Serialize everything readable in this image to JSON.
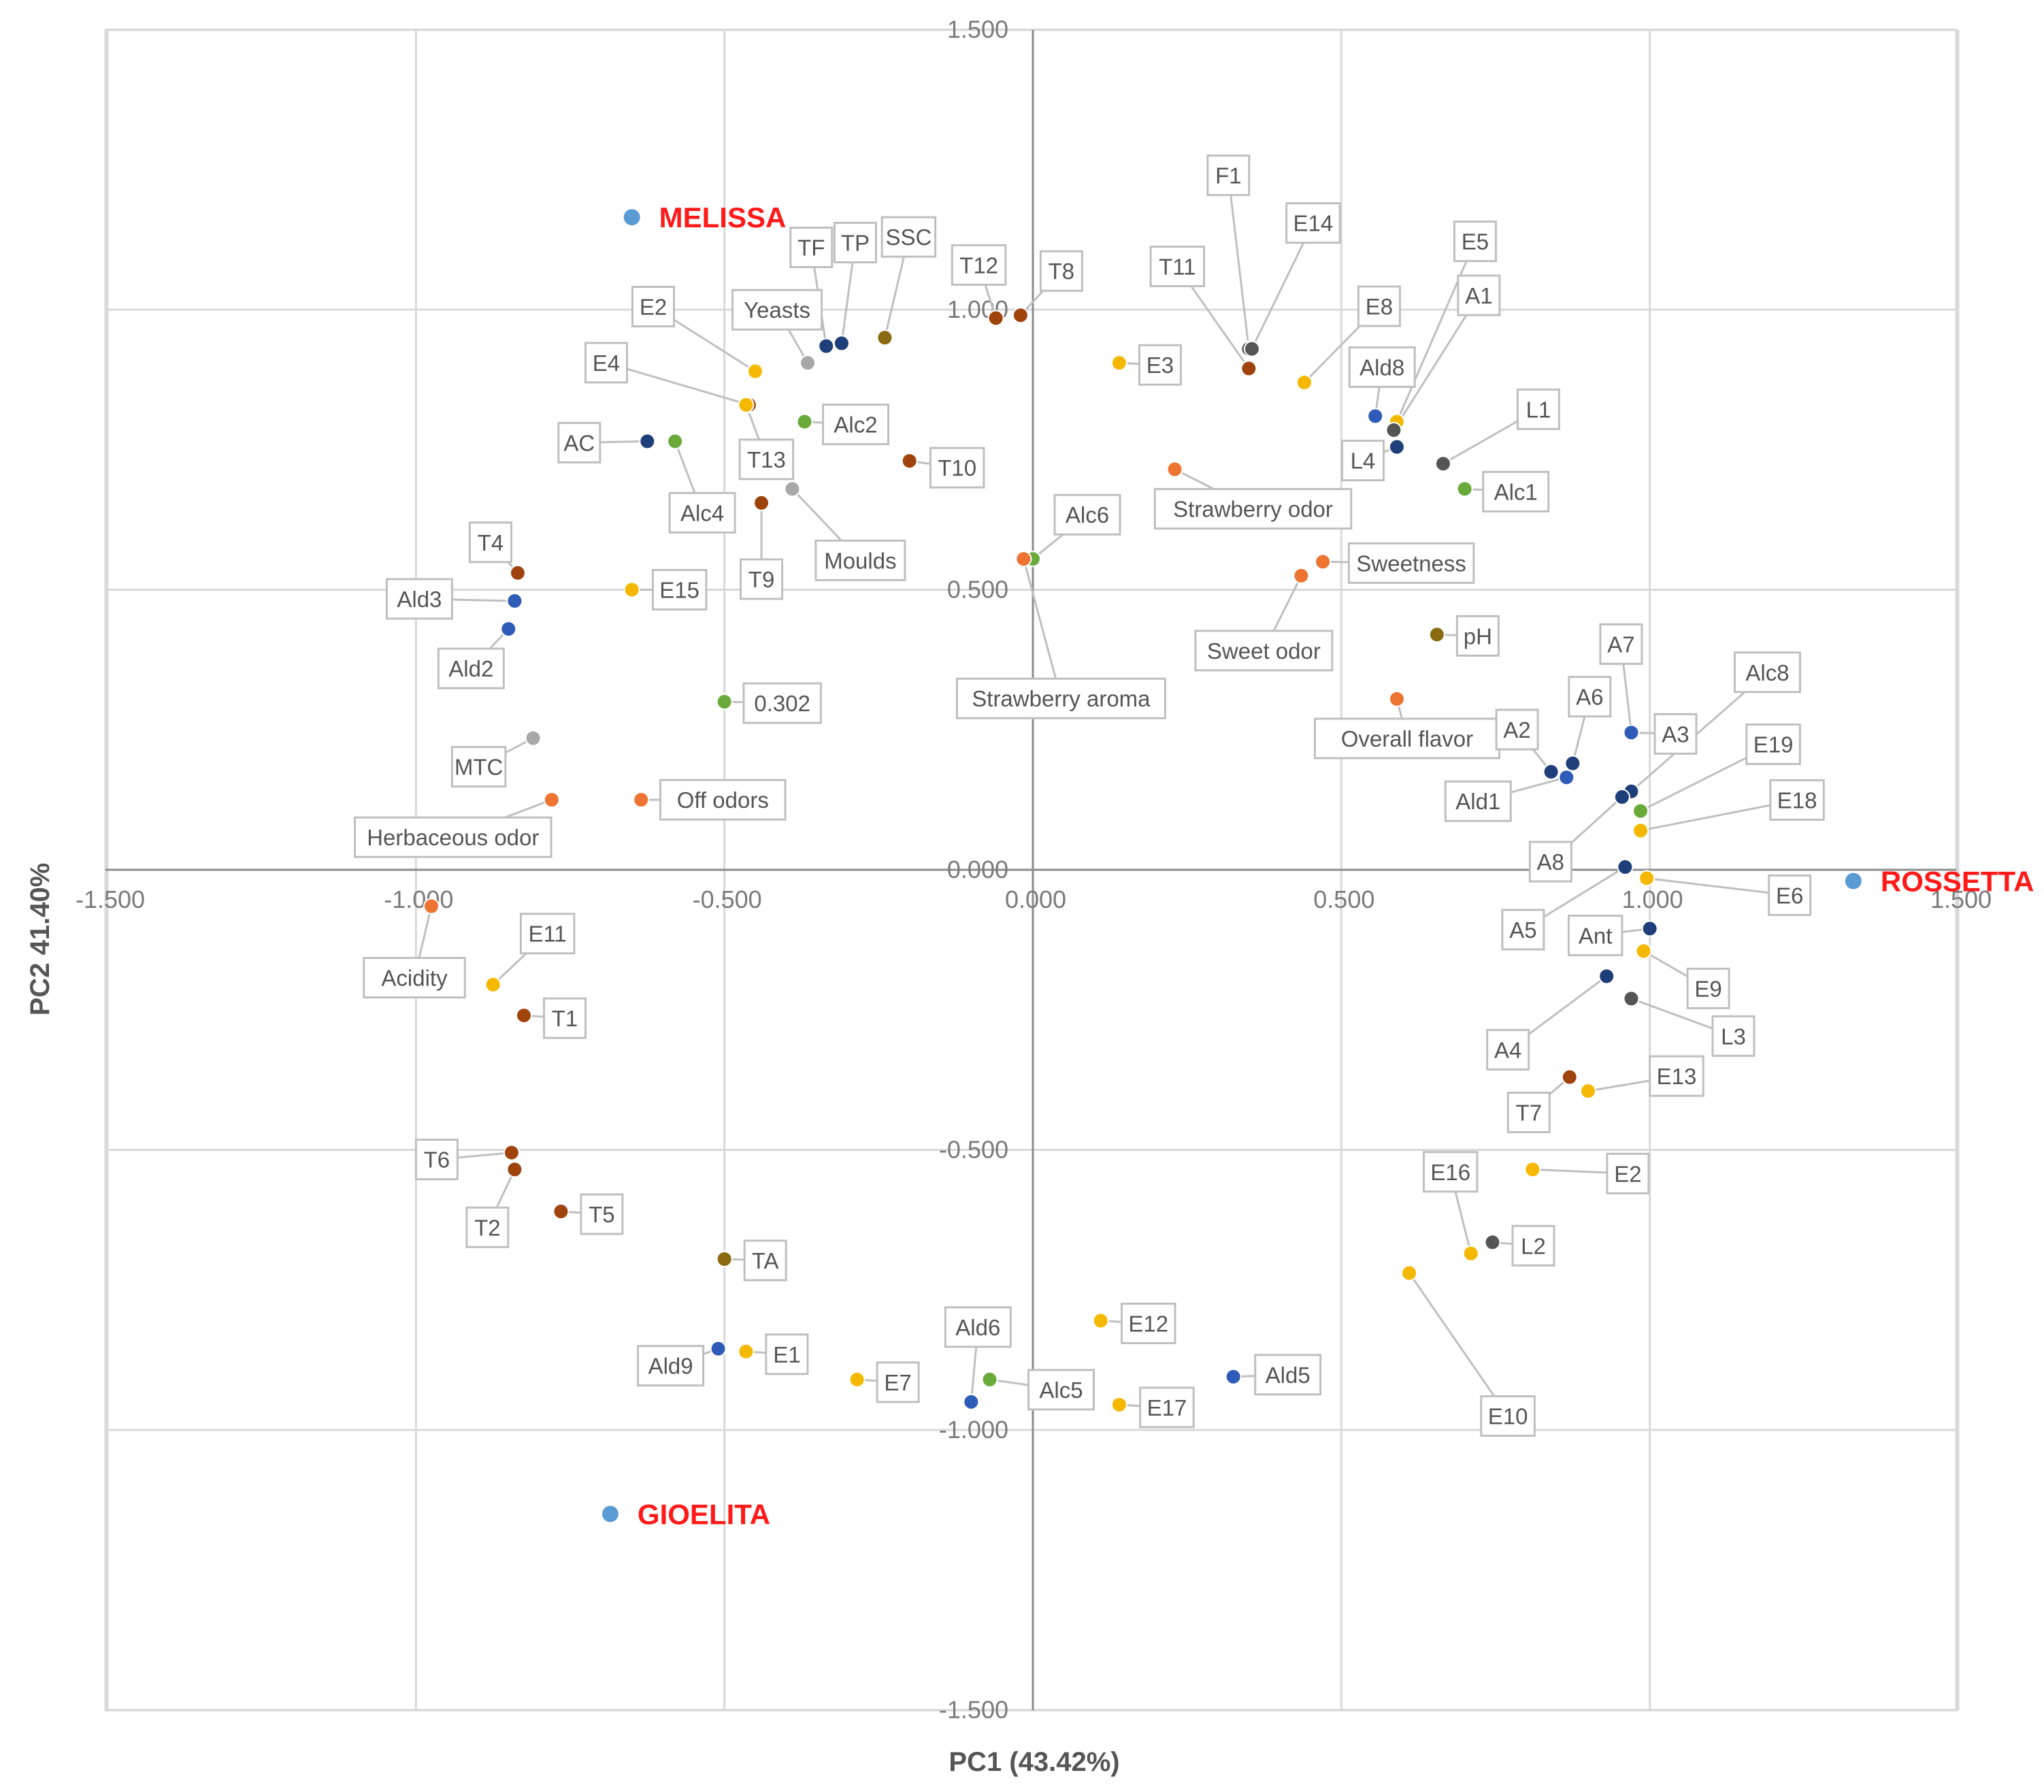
{
  "chart_data": {
    "type": "scatter",
    "xlabel": "PC1 (43.42%)",
    "ylabel": "PC2 41.40%",
    "xlim": [
      -1.5,
      1.5
    ],
    "ylim": [
      -1.5,
      1.5
    ],
    "xticks": [
      "-1.500",
      "-1.000",
      "-0.500",
      "0.000",
      "0.500",
      "1.000",
      "1.500"
    ],
    "yticks": [
      "-1.500",
      "-1.000",
      "-0.500",
      "0.000",
      "0.500",
      "1.000",
      "1.500"
    ],
    "grid": true,
    "colors": {
      "yellow": "#f5b800",
      "brown": "#a0440e",
      "blue": "#2e5cb8",
      "navy": "#1f3f7a",
      "green": "#6aaa3a",
      "gray": "#a8a8a8",
      "dkgray": "#555555",
      "olive": "#8a6a10",
      "orange": "#ed7432",
      "sample": "#5b9bd5",
      "sampleText": "#ff1a1a"
    },
    "samples": [
      {
        "name": "MELISSA",
        "x": -0.65,
        "y": 1.165
      },
      {
        "name": "ROSSETTA",
        "x": 1.33,
        "y": -0.02
      },
      {
        "name": "GIOELITA",
        "x": -0.685,
        "y": -1.15
      }
    ],
    "points": [
      {
        "label": "E2",
        "x": -0.45,
        "y": 0.89,
        "color": "yellow"
      },
      {
        "label": "E4",
        "x": -0.46,
        "y": 0.83,
        "color": "brown"
      },
      {
        "label": "Yeasts",
        "x": -0.365,
        "y": 0.905,
        "color": "gray"
      },
      {
        "label": "TF",
        "x": -0.335,
        "y": 0.935,
        "color": "navy"
      },
      {
        "label": "TP",
        "x": -0.31,
        "y": 0.94,
        "color": "navy"
      },
      {
        "label": "SSC",
        "x": -0.24,
        "y": 0.95,
        "color": "olive"
      },
      {
        "label": "T12",
        "x": -0.06,
        "y": 0.985,
        "color": "brown"
      },
      {
        "label": "T8",
        "x": -0.02,
        "y": 0.99,
        "color": "brown"
      },
      {
        "label": "AC",
        "x": -0.625,
        "y": 0.765,
        "color": "navy"
      },
      {
        "label": "Alc4",
        "x": -0.58,
        "y": 0.765,
        "color": "green"
      },
      {
        "label": "T13",
        "x": -0.465,
        "y": 0.83,
        "color": "yellow"
      },
      {
        "label": "Alc2",
        "x": -0.37,
        "y": 0.8,
        "color": "green"
      },
      {
        "label": "T10",
        "x": -0.2,
        "y": 0.73,
        "color": "brown"
      },
      {
        "label": "T9",
        "x": -0.44,
        "y": 0.655,
        "color": "brown"
      },
      {
        "label": "Moulds",
        "x": -0.39,
        "y": 0.68,
        "color": "gray"
      },
      {
        "label": "T4",
        "x": -0.835,
        "y": 0.53,
        "color": "brown"
      },
      {
        "label": "Ald3",
        "x": -0.84,
        "y": 0.48,
        "color": "blue"
      },
      {
        "label": "Ald2",
        "x": -0.85,
        "y": 0.43,
        "color": "blue"
      },
      {
        "label": "E15",
        "x": -0.65,
        "y": 0.5,
        "color": "yellow"
      },
      {
        "label": "0.302",
        "x": -0.5,
        "y": 0.3,
        "color": "green"
      },
      {
        "label": "MTC",
        "x": -0.81,
        "y": 0.235,
        "color": "gray"
      },
      {
        "label": "Herbaceous odor",
        "x": -0.78,
        "y": 0.125,
        "color": "orange"
      },
      {
        "label": "Off odors",
        "x": -0.635,
        "y": 0.125,
        "color": "orange"
      },
      {
        "label": "E3",
        "x": 0.14,
        "y": 0.905,
        "color": "yellow"
      },
      {
        "label": "F1",
        "x": 0.35,
        "y": 0.93,
        "color": "dkgray"
      },
      {
        "label": "T11",
        "x": 0.35,
        "y": 0.895,
        "color": "brown"
      },
      {
        "label": "E14",
        "x": 0.355,
        "y": 0.93,
        "color": "dkgray"
      },
      {
        "label": "E8",
        "x": 0.44,
        "y": 0.87,
        "color": "yellow"
      },
      {
        "label": "E5",
        "x": 0.59,
        "y": 0.8,
        "color": "yellow"
      },
      {
        "label": "Ald8",
        "x": 0.555,
        "y": 0.81,
        "color": "blue"
      },
      {
        "label": "A1",
        "x": 0.585,
        "y": 0.785,
        "color": "dkgray"
      },
      {
        "label": "L4",
        "x": 0.59,
        "y": 0.755,
        "color": "navy"
      },
      {
        "label": "L1",
        "x": 0.665,
        "y": 0.725,
        "color": "dkgray"
      },
      {
        "label": "Alc1",
        "x": 0.7,
        "y": 0.68,
        "color": "green"
      },
      {
        "label": "Strawberry odor",
        "x": 0.23,
        "y": 0.715,
        "color": "orange"
      },
      {
        "label": "Alc6",
        "x": 0.0,
        "y": 0.555,
        "color": "green"
      },
      {
        "label": "Strawberry aroma",
        "x": -0.015,
        "y": 0.555,
        "color": "orange"
      },
      {
        "label": "Sweetness",
        "x": 0.47,
        "y": 0.55,
        "color": "orange"
      },
      {
        "label": "Sweet odor",
        "x": 0.435,
        "y": 0.525,
        "color": "orange"
      },
      {
        "label": "pH",
        "x": 0.655,
        "y": 0.42,
        "color": "olive"
      },
      {
        "label": "Overall flavor",
        "x": 0.59,
        "y": 0.305,
        "color": "orange"
      },
      {
        "label": "A7",
        "x": 0.97,
        "y": 0.245,
        "color": "navy"
      },
      {
        "label": "A6",
        "x": 0.875,
        "y": 0.19,
        "color": "navy"
      },
      {
        "label": "A3",
        "x": 0.97,
        "y": 0.245,
        "color": "blue"
      },
      {
        "label": "A2",
        "x": 0.84,
        "y": 0.175,
        "color": "navy"
      },
      {
        "label": "Ald1",
        "x": 0.865,
        "y": 0.165,
        "color": "blue"
      },
      {
        "label": "Alc8",
        "x": 0.97,
        "y": 0.14,
        "color": "navy"
      },
      {
        "label": "A8",
        "x": 0.955,
        "y": 0.13,
        "color": "navy"
      },
      {
        "label": "E19",
        "x": 0.985,
        "y": 0.105,
        "color": "green"
      },
      {
        "label": "E18",
        "x": 0.985,
        "y": 0.07,
        "color": "yellow"
      },
      {
        "label": "A5",
        "x": 0.96,
        "y": 0.005,
        "color": "navy"
      },
      {
        "label": "E6",
        "x": 0.995,
        "y": -0.015,
        "color": "yellow"
      },
      {
        "label": "Ant",
        "x": 1.0,
        "y": -0.105,
        "color": "navy"
      },
      {
        "label": "E9",
        "x": 0.99,
        "y": -0.145,
        "color": "yellow"
      },
      {
        "label": "A4",
        "x": 0.93,
        "y": -0.19,
        "color": "navy"
      },
      {
        "label": "L3",
        "x": 0.97,
        "y": -0.23,
        "color": "dkgray"
      },
      {
        "label": "T7",
        "x": 0.87,
        "y": -0.37,
        "color": "brown"
      },
      {
        "label": "E13",
        "x": 0.9,
        "y": -0.395,
        "color": "yellow"
      },
      {
        "label": "E2",
        "x": 0.81,
        "y": -0.535,
        "color": "yellow"
      },
      {
        "label": "E16",
        "x": 0.71,
        "y": -0.685,
        "color": "yellow"
      },
      {
        "label": "L2",
        "x": 0.745,
        "y": -0.665,
        "color": "dkgray"
      },
      {
        "label": "E10",
        "x": 0.61,
        "y": -0.72,
        "color": "yellow"
      },
      {
        "label": "Acidity",
        "x": -0.975,
        "y": -0.065,
        "color": "orange"
      },
      {
        "label": "E11",
        "x": -0.875,
        "y": -0.205,
        "color": "yellow"
      },
      {
        "label": "T1",
        "x": -0.825,
        "y": -0.26,
        "color": "brown"
      },
      {
        "label": "T6",
        "x": -0.845,
        "y": -0.505,
        "color": "brown"
      },
      {
        "label": "T2",
        "x": -0.84,
        "y": -0.535,
        "color": "brown"
      },
      {
        "label": "T5",
        "x": -0.765,
        "y": -0.61,
        "color": "brown"
      },
      {
        "label": "TA",
        "x": -0.5,
        "y": -0.695,
        "color": "olive"
      },
      {
        "label": "Ald9",
        "x": -0.51,
        "y": -0.855,
        "color": "blue"
      },
      {
        "label": "E1",
        "x": -0.465,
        "y": -0.86,
        "color": "yellow"
      },
      {
        "label": "E7",
        "x": -0.285,
        "y": -0.91,
        "color": "yellow"
      },
      {
        "label": "Ald6",
        "x": -0.1,
        "y": -0.95,
        "color": "blue"
      },
      {
        "label": "Alc5",
        "x": -0.07,
        "y": -0.91,
        "color": "green"
      },
      {
        "label": "E12",
        "x": 0.11,
        "y": -0.805,
        "color": "yellow"
      },
      {
        "label": "E17",
        "x": 0.14,
        "y": -0.955,
        "color": "yellow"
      },
      {
        "label": "Ald5",
        "x": 0.325,
        "y": -0.905,
        "color": "blue"
      }
    ]
  },
  "layout_labels": {}
}
